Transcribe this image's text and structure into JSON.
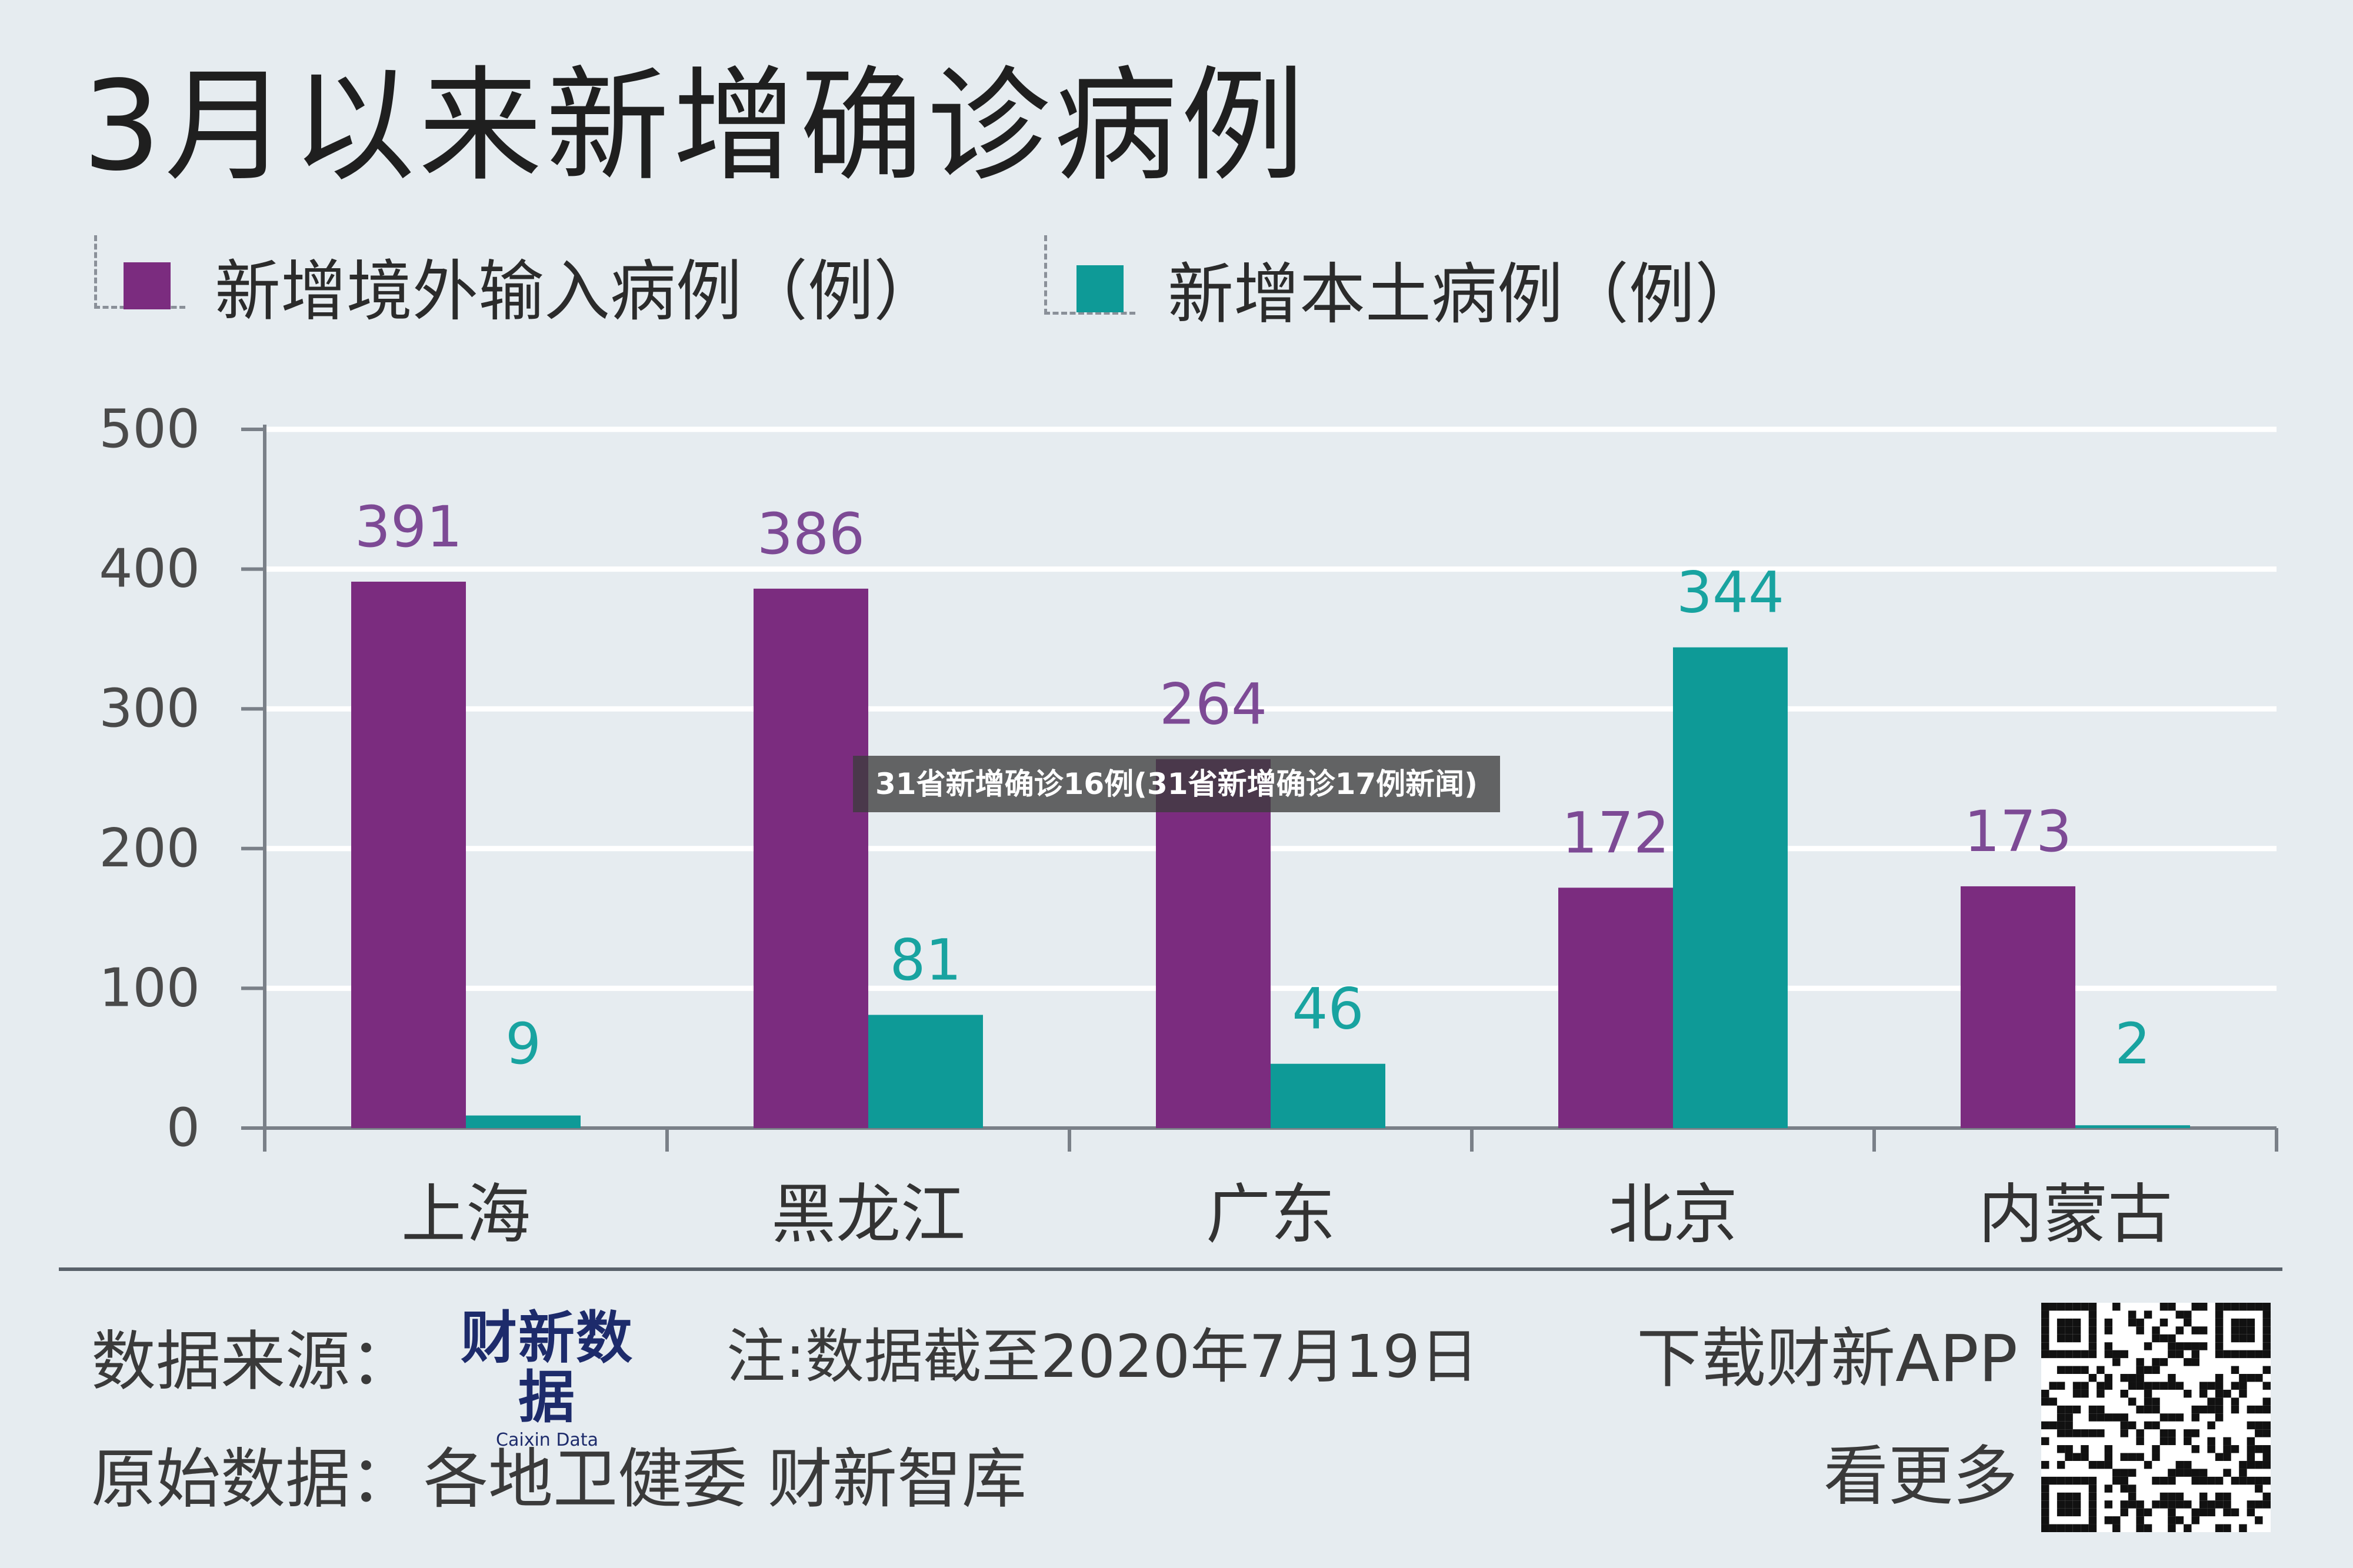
{
  "chart_data": {
    "type": "bar",
    "title": "3月以来新增确诊病例",
    "categories": [
      "上海",
      "黑龙江",
      "广东",
      "北京",
      "内蒙古"
    ],
    "series": [
      {
        "name": "新增境外输入病例（例）",
        "values": [
          391,
          386,
          264,
          172,
          173
        ],
        "color": "#7b2c7f"
      },
      {
        "name": "新增本土病例（例）",
        "values": [
          9,
          81,
          46,
          344,
          2
        ],
        "color": "#0e9a97"
      }
    ],
    "ylim": [
      0,
      500
    ],
    "yticks": [
      "0",
      "100",
      "200",
      "300",
      "400",
      "500"
    ],
    "data_labels": [
      [
        "391",
        "386",
        "264",
        "172",
        "173"
      ],
      [
        "9",
        "81",
        "46",
        "344",
        "2"
      ]
    ],
    "grid": true,
    "legend": "top-left",
    "value_label_colors": [
      "#7d4a95",
      "#18a3a0"
    ]
  },
  "footer": {
    "source_label": "数据来源：",
    "brand_name": "财新数据",
    "brand_sub": "Caixin Data",
    "note": "注:数据截至2020年7月19日",
    "original_label": "原始数据：",
    "original_sources": "各地卫健委 财新智库",
    "download_text": "下载财新APP",
    "more_text": "看更多"
  },
  "overlay": {
    "caption": "31省新增确诊16例(31省新增确诊17例新闻)"
  },
  "icons": {
    "qr": "qr-code-icon"
  }
}
